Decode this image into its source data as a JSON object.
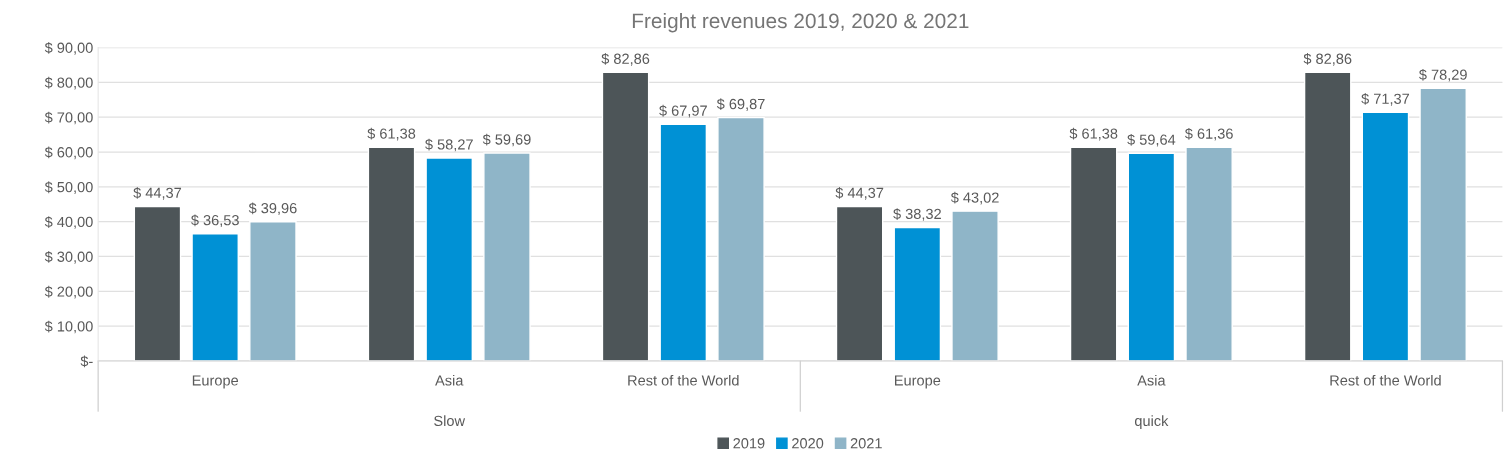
{
  "chart_data": {
    "type": "bar",
    "title": "Freight revenues 2019, 2020 & 2021",
    "categories": [
      "Europe",
      "Asia",
      "Rest of the World",
      "Europe",
      "Asia",
      "Rest of the World"
    ],
    "annotations": [
      "Slow",
      "quick"
    ],
    "series": [
      {
        "name": "2019",
        "color": "#4d5558",
        "values": [
          44.37,
          61.38,
          82.86,
          44.37,
          61.38,
          82.86
        ],
        "value_labels": [
          "$ 44,37",
          "$ 61,38",
          "$ 82,86",
          "$ 44,37",
          "$ 61,38",
          "$ 82,86"
        ]
      },
      {
        "name": "2020",
        "color": "#0091d5",
        "values": [
          36.53,
          58.27,
          67.97,
          38.32,
          59.64,
          71.37
        ],
        "value_labels": [
          "$ 36,53",
          "$ 58,27",
          "$ 67,97",
          "$ 38,32",
          "$ 59,64",
          "$ 71,37"
        ]
      },
      {
        "name": "2021",
        "color": "#8fb5c8",
        "values": [
          39.96,
          59.69,
          69.87,
          43.02,
          61.36,
          78.29
        ],
        "value_labels": [
          "$ 39,96",
          "$ 59,69",
          "$ 69,87",
          "$ 43,02",
          "$ 61,36",
          "$ 78,29"
        ]
      }
    ],
    "ylim": [
      0,
      90
    ],
    "yticks": [
      {
        "value": 0,
        "label": "$-"
      },
      {
        "value": 10,
        "label": "$ 10,00"
      },
      {
        "value": 20,
        "label": "$ 20,00"
      },
      {
        "value": 30,
        "label": "$ 30,00"
      },
      {
        "value": 40,
        "label": "$ 40,00"
      },
      {
        "value": 50,
        "label": "$ 50,00"
      },
      {
        "value": 60,
        "label": "$ 60,00"
      },
      {
        "value": 70,
        "label": "$ 70,00"
      },
      {
        "value": 80,
        "label": "$ 80,00"
      },
      {
        "value": 90,
        "label": "$ 90,00"
      }
    ],
    "grid": "y",
    "legend": "bottom"
  }
}
